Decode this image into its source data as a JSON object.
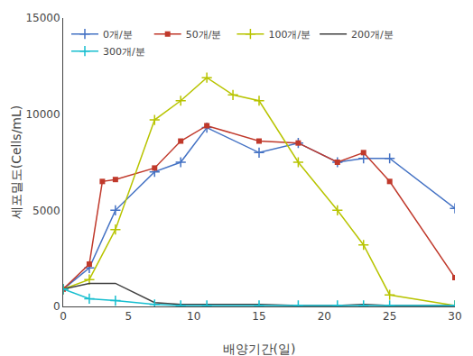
{
  "chart_data": {
    "type": "line",
    "xlabel": "배양기간(일)",
    "ylabel": "세포밀도(Cells/mL)",
    "xlim": [
      0,
      30
    ],
    "ylim": [
      0,
      15000
    ],
    "xticks": [
      0,
      5,
      10,
      15,
      20,
      25,
      30
    ],
    "yticks": [
      0,
      5000,
      10000,
      15000
    ],
    "grid": false,
    "legend": "upper left",
    "series": [
      {
        "name": "0개/분",
        "color": "#4472C4",
        "marker": "plus",
        "x": [
          0,
          2,
          4,
          7,
          9,
          11,
          15,
          18,
          21,
          23,
          25,
          30
        ],
        "values": [
          900,
          2000,
          5000,
          7000,
          7500,
          9300,
          8000,
          8500,
          7500,
          7700,
          7700,
          5100
        ]
      },
      {
        "name": "50개/분",
        "color": "#C0392B",
        "marker": "square",
        "x": [
          0,
          2,
          3,
          4,
          7,
          9,
          11,
          15,
          18,
          21,
          23,
          25,
          30
        ],
        "values": [
          900,
          2200,
          6500,
          6600,
          7200,
          8600,
          9400,
          8600,
          8500,
          7500,
          8000,
          6500,
          1500
        ]
      },
      {
        "name": "100개/분",
        "color": "#B8C400",
        "marker": "plus",
        "x": [
          0,
          2,
          4,
          7,
          9,
          11,
          13,
          15,
          18,
          21,
          23,
          25,
          30
        ],
        "values": [
          900,
          1400,
          4000,
          9700,
          10700,
          11900,
          11000,
          10700,
          7500,
          5000,
          3200,
          600,
          50
        ]
      },
      {
        "name": "200개/분",
        "color": "#404040",
        "marker": "none",
        "x": [
          0,
          2,
          4,
          7,
          9,
          11,
          15,
          18,
          21,
          23,
          25,
          30
        ],
        "values": [
          900,
          1200,
          1200,
          200,
          100,
          100,
          100,
          50,
          50,
          100,
          50,
          50
        ]
      },
      {
        "name": "300개/분",
        "color": "#17BECF",
        "marker": "plus",
        "x": [
          0,
          2,
          4,
          7,
          9,
          11,
          15,
          18,
          21,
          23,
          25,
          30
        ],
        "values": [
          900,
          400,
          300,
          100,
          50,
          50,
          50,
          50,
          50,
          50,
          50,
          50
        ]
      }
    ]
  }
}
